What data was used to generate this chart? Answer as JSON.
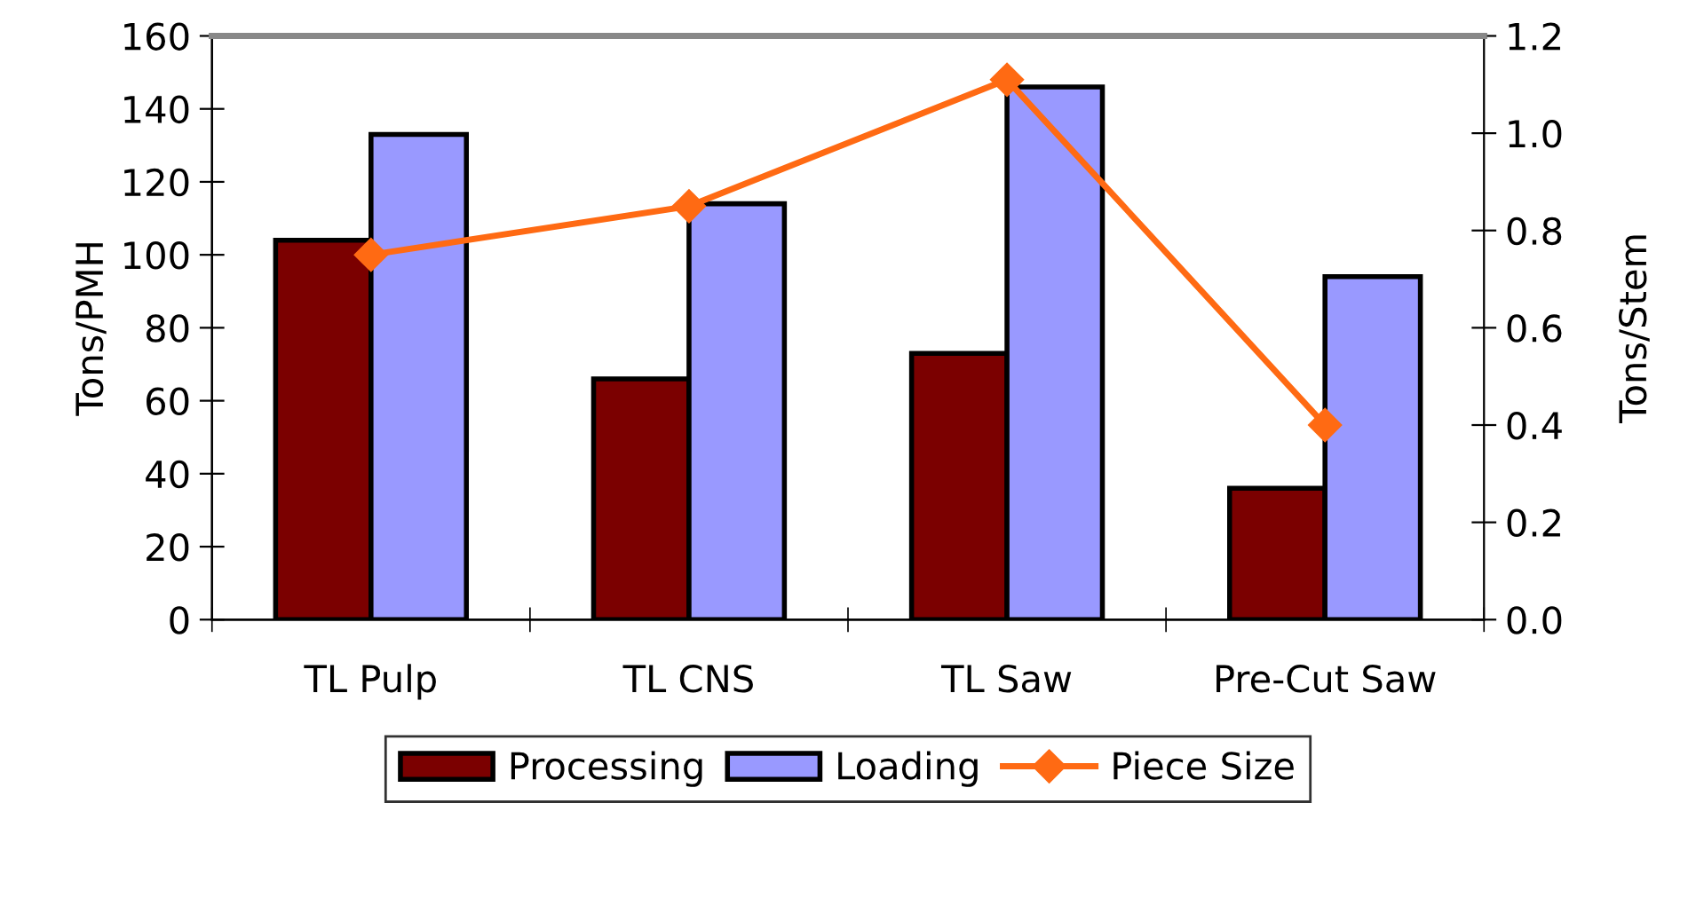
{
  "chart_data": {
    "type": "bar",
    "categories": [
      "TL Pulp",
      "TL CNS",
      "TL Saw",
      "Pre-Cut Saw"
    ],
    "ylabel": "Tons/PMH",
    "y2label": "Tons/Stem",
    "ylim": [
      0,
      160
    ],
    "yticks": [
      0,
      20,
      40,
      60,
      80,
      100,
      120,
      140,
      160
    ],
    "y2lim": [
      0,
      1.2
    ],
    "y2ticks": [
      {
        "value": 0,
        "label": "0.0"
      },
      {
        "value": 0.2,
        "label": "0.2"
      },
      {
        "value": 0.4,
        "label": "0.4"
      },
      {
        "value": 0.6,
        "label": "0.6"
      },
      {
        "value": 0.8,
        "label": "0.8"
      },
      {
        "value": 1.0,
        "label": "1.0"
      },
      {
        "value": 1.2,
        "label": "1.2"
      }
    ],
    "legend": "bottom",
    "grid": false,
    "series": [
      {
        "name": "Processing",
        "color": "#7b0000",
        "values": [
          104,
          66,
          73,
          36
        ]
      },
      {
        "name": "Loading",
        "color": "#9999ff",
        "values": [
          133,
          114,
          146,
          94
        ]
      },
      {
        "name": "Piece Size",
        "type": "line",
        "axis": "y2",
        "color": "#ff6a13",
        "marker": "diamond",
        "values": [
          0.75,
          0.85,
          1.11,
          0.4
        ]
      }
    ]
  }
}
